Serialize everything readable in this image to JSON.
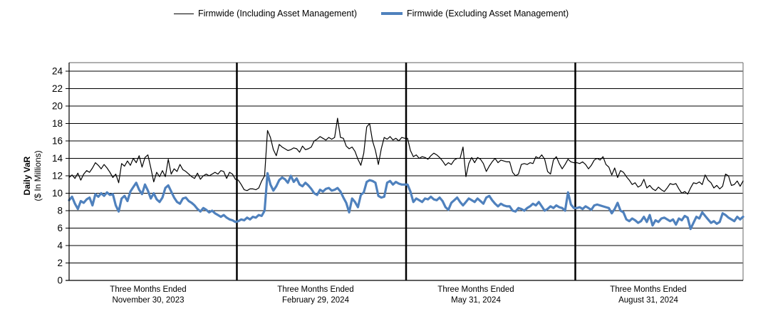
{
  "chart_data": {
    "type": "line",
    "title": "",
    "ylabel_line1": "Daily VaR",
    "ylabel_line2": "($ In Millions)",
    "ylim": [
      0,
      25
    ],
    "yticks": [
      0,
      2,
      4,
      6,
      8,
      10,
      12,
      14,
      16,
      18,
      20,
      22,
      24
    ],
    "grid": "horizontal",
    "legend_position": "top",
    "frame_color": "#808080",
    "axis_color": "#000000",
    "divider_color": "#000000",
    "points_per_quarter": 58,
    "x_quarters": [
      {
        "line1": "Three Months Ended",
        "line2": "November 30, 2023"
      },
      {
        "line1": "Three Months Ended",
        "line2": "February 29, 2024"
      },
      {
        "line1": "Three Months Ended",
        "line2": "May 31, 2024"
      },
      {
        "line1": "Three Months Ended",
        "line2": "August 31, 2024"
      }
    ],
    "series": [
      {
        "name": "Firmwide (Including Asset Management)",
        "color": "#000000",
        "stroke_width": 1.2,
        "values": [
          11.8,
          12.1,
          11.7,
          12.3,
          11.5,
          12.2,
          12.6,
          12.4,
          12.9,
          13.5,
          13.2,
          12.8,
          13.3,
          12.9,
          12.4,
          11.8,
          12.2,
          11.2,
          13.4,
          13.1,
          13.7,
          13.2,
          14.0,
          13.5,
          14.3,
          13.0,
          14.1,
          14.4,
          12.9,
          11.3,
          12.4,
          11.9,
          12.6,
          11.9,
          13.9,
          12.2,
          12.8,
          12.5,
          13.3,
          12.7,
          12.5,
          12.2,
          11.9,
          11.7,
          12.3,
          11.6,
          12.0,
          12.2,
          12.0,
          12.2,
          12.4,
          12.2,
          12.6,
          12.5,
          11.7,
          12.4,
          12.2,
          11.6,
          11.5,
          11.0,
          10.4,
          10.3,
          10.5,
          10.5,
          10.4,
          10.6,
          11.4,
          12.0,
          17.2,
          16.4,
          15.0,
          14.3,
          15.6,
          15.3,
          15.1,
          14.9,
          15.0,
          15.2,
          15.1,
          14.7,
          15.4,
          15.0,
          15.1,
          15.3,
          16.0,
          16.2,
          16.5,
          16.3,
          16.1,
          16.4,
          16.2,
          16.4,
          18.6,
          16.4,
          16.3,
          15.4,
          15.1,
          15.3,
          14.8,
          13.9,
          13.2,
          14.6,
          17.6,
          18.0,
          16.0,
          14.9,
          13.3,
          15.1,
          16.4,
          16.2,
          16.5,
          16.1,
          16.3,
          16.0,
          16.4,
          16.3,
          16.3,
          14.9,
          14.2,
          14.4,
          14.0,
          14.2,
          14.1,
          13.9,
          14.3,
          14.6,
          14.4,
          14.1,
          13.7,
          13.2,
          13.5,
          13.3,
          13.8,
          14.0,
          14.0,
          15.3,
          11.9,
          13.4,
          14.1,
          13.5,
          14.1,
          13.9,
          13.4,
          12.5,
          13.1,
          13.6,
          14.0,
          13.5,
          13.8,
          13.7,
          13.6,
          13.6,
          12.4,
          12.0,
          12.2,
          13.3,
          13.4,
          13.3,
          13.5,
          13.4,
          14.2,
          14.0,
          14.4,
          13.9,
          12.5,
          12.2,
          13.8,
          14.2,
          13.4,
          12.8,
          13.3,
          13.9,
          13.6,
          13.5,
          13.5,
          13.4,
          13.6,
          13.3,
          12.8,
          13.2,
          13.8,
          14.0,
          13.8,
          14.2,
          13.3,
          13.0,
          12.1,
          12.9,
          11.8,
          12.6,
          12.4,
          11.9,
          11.5,
          11.0,
          11.2,
          10.7,
          10.9,
          11.6,
          10.6,
          10.9,
          10.5,
          10.3,
          10.7,
          10.4,
          10.2,
          10.6,
          11.1,
          11.0,
          11.1,
          10.5,
          10.0,
          10.2,
          9.9,
          10.6,
          11.2,
          11.1,
          11.3,
          11.0,
          12.1,
          11.5,
          11.2,
          10.6,
          10.9,
          10.5,
          10.8,
          12.2,
          12.0,
          10.9,
          11.0,
          11.4,
          10.8,
          11.4
        ]
      },
      {
        "name": "Firmwide (Excluding Asset Management)",
        "color": "#4F81BD",
        "stroke_width": 3.2,
        "values": [
          9.2,
          9.6,
          8.8,
          8.2,
          9.1,
          8.9,
          9.3,
          9.5,
          8.6,
          9.9,
          9.6,
          10.0,
          9.7,
          10.1,
          9.8,
          9.9,
          8.6,
          7.9,
          9.4,
          9.7,
          9.1,
          10.2,
          10.7,
          11.2,
          10.4,
          9.9,
          11.0,
          10.3,
          9.4,
          10.0,
          9.3,
          9.0,
          9.5,
          10.6,
          10.9,
          10.2,
          9.5,
          9.0,
          8.8,
          9.4,
          9.5,
          9.1,
          8.9,
          8.6,
          8.2,
          7.9,
          8.3,
          8.1,
          7.8,
          8.0,
          7.7,
          7.5,
          7.3,
          7.5,
          7.2,
          7.0,
          6.9,
          6.7,
          6.8,
          7.0,
          6.9,
          7.2,
          7.0,
          7.3,
          7.2,
          7.5,
          7.4,
          8.0,
          12.3,
          11.0,
          10.3,
          10.8,
          11.5,
          11.8,
          11.6,
          11.2,
          12.0,
          11.3,
          11.7,
          11.0,
          10.8,
          11.2,
          10.9,
          10.5,
          10.0,
          9.8,
          10.4,
          10.2,
          10.5,
          10.6,
          10.3,
          10.4,
          10.6,
          10.2,
          9.5,
          8.9,
          7.8,
          9.4,
          9.0,
          8.4,
          9.8,
          10.1,
          11.3,
          11.5,
          11.4,
          11.2,
          9.7,
          9.5,
          9.6,
          11.2,
          11.4,
          11.0,
          11.3,
          11.1,
          11.0,
          11.0,
          11.0,
          10.2,
          9.0,
          9.4,
          9.2,
          9.0,
          9.4,
          9.3,
          9.6,
          9.3,
          9.2,
          9.5,
          9.1,
          8.4,
          8.1,
          8.9,
          9.2,
          9.5,
          9.0,
          8.6,
          9.0,
          9.4,
          9.2,
          9.0,
          9.4,
          9.1,
          8.8,
          9.5,
          9.7,
          9.2,
          8.8,
          8.5,
          8.8,
          8.6,
          8.5,
          8.5,
          8.0,
          7.9,
          8.3,
          8.2,
          8.0,
          8.3,
          8.5,
          8.8,
          8.6,
          9.0,
          8.5,
          8.0,
          8.2,
          8.5,
          8.3,
          8.6,
          8.4,
          8.3,
          8.0,
          10.1,
          8.7,
          8.3,
          8.3,
          8.4,
          8.2,
          8.5,
          8.3,
          8.1,
          8.6,
          8.7,
          8.6,
          8.5,
          8.4,
          8.3,
          7.7,
          8.2,
          8.9,
          8.0,
          7.8,
          7.0,
          6.8,
          7.1,
          6.9,
          6.6,
          6.8,
          7.3,
          6.7,
          7.5,
          6.3,
          6.9,
          6.7,
          7.1,
          7.2,
          7.0,
          6.8,
          7.0,
          6.4,
          7.1,
          6.9,
          7.4,
          7.2,
          5.9,
          6.6,
          7.3,
          7.1,
          7.8,
          7.4,
          7.0,
          6.6,
          6.8,
          6.5,
          6.7,
          7.7,
          7.5,
          7.2,
          7.0,
          6.8,
          7.3,
          7.0,
          7.3
        ]
      }
    ]
  }
}
